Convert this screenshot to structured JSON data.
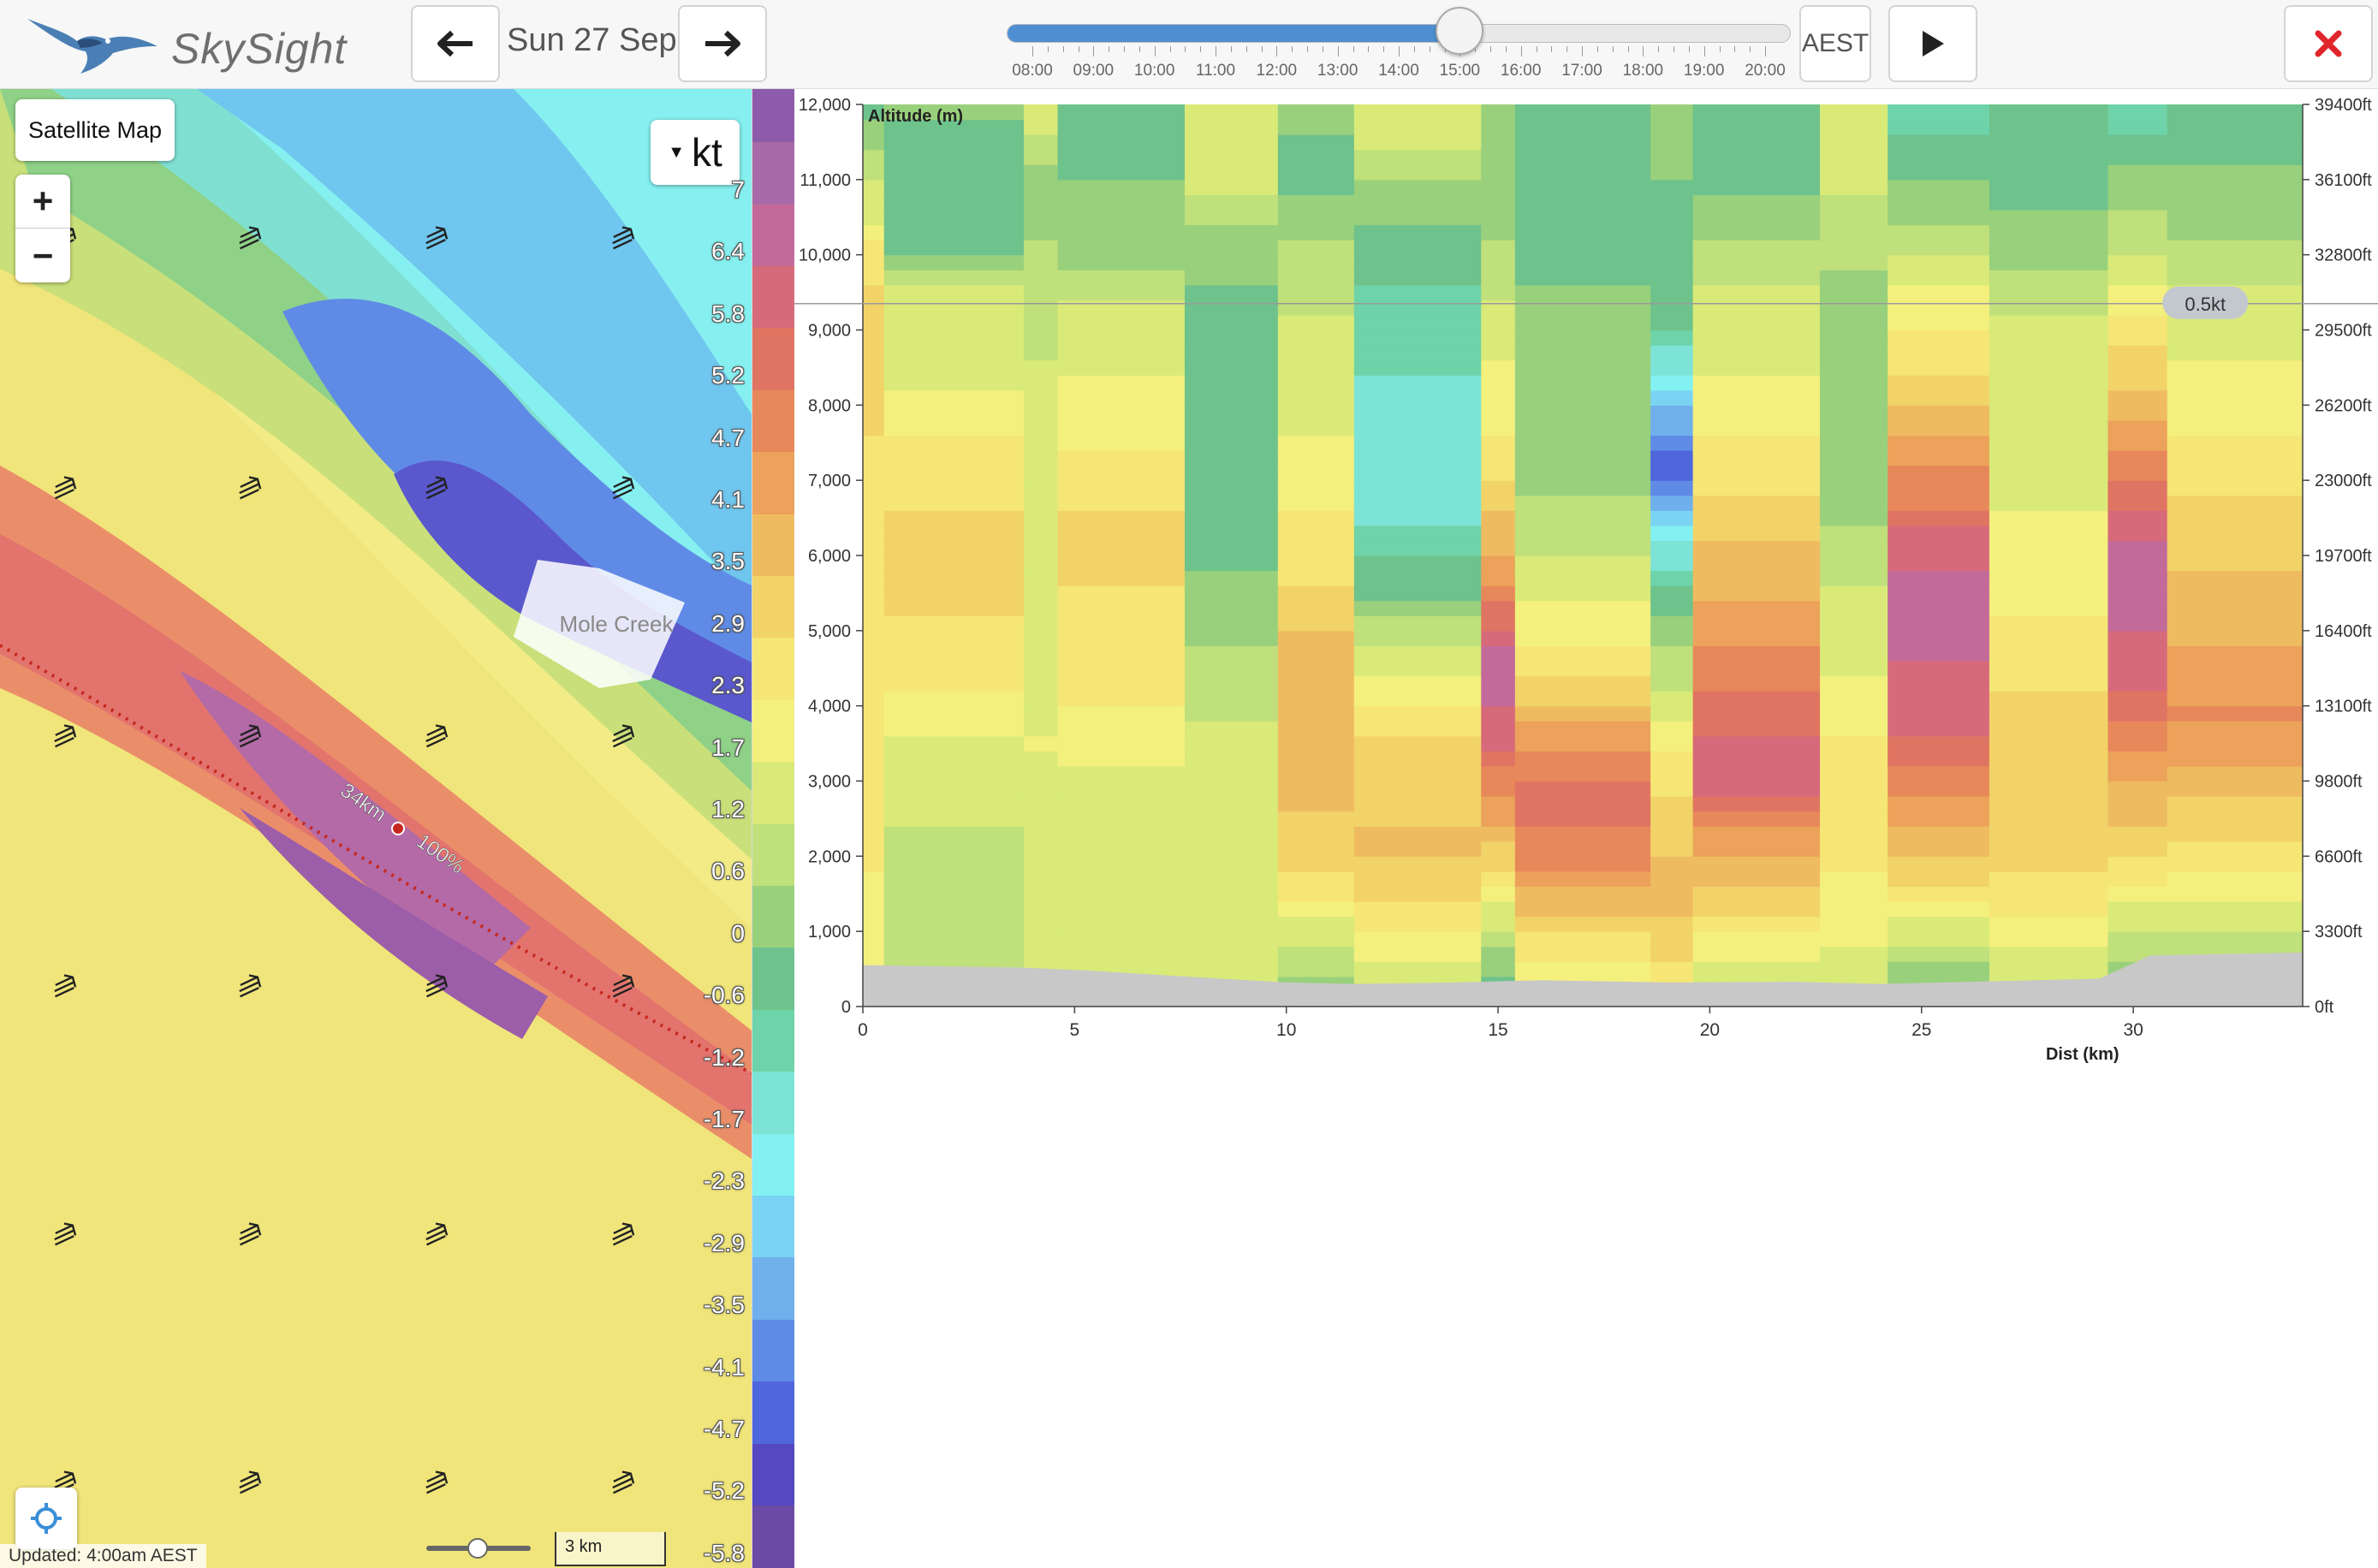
{
  "app": {
    "brand": "SkySight"
  },
  "header": {
    "date_label": "Sun 27 Sep",
    "prev_icon": "arrow-left-icon",
    "next_icon": "arrow-right-icon",
    "timezone_label": "AEST",
    "play_icon": "play-icon",
    "close_icon": "close-icon",
    "close_color": "#e0262b"
  },
  "timeline": {
    "hours": [
      "08:00",
      "09:00",
      "10:00",
      "11:00",
      "12:00",
      "13:00",
      "14:00",
      "15:00",
      "16:00",
      "17:00",
      "18:00",
      "19:00",
      "20:00"
    ],
    "selected": "15:00",
    "fill_color": "#4f8fd1"
  },
  "map": {
    "layer_button": "Satellite Map",
    "zoom_in": "+",
    "zoom_out": "−",
    "unit_label": "kt",
    "place_label": "Mole Creek",
    "route_distance": "34km",
    "route_percent": "100%",
    "updated": "Updated: 4:00am AEST",
    "scale_label": "3 km",
    "locate_icon": "locate-icon"
  },
  "legend": {
    "labels": [
      "7",
      "6.4",
      "5.8",
      "5.2",
      "4.7",
      "4.1",
      "3.5",
      "2.9",
      "2.3",
      "1.7",
      "1.2",
      "0.6",
      "0",
      "-0.6",
      "-1.2",
      "-1.7",
      "-2.3",
      "-2.9",
      "-3.5",
      "-4.1",
      "-4.7",
      "-5.2",
      "-5.8"
    ],
    "colors": [
      "#8e5bab",
      "#a86aa8",
      "#c36a9a",
      "#d76a7a",
      "#e07462",
      "#e7885a",
      "#eca25a",
      "#efbb60",
      "#f1d368",
      "#f5e675",
      "#f4f07e",
      "#d9ea78",
      "#bfe07a",
      "#99d07c",
      "#6ec28c",
      "#6ed3a8",
      "#7ce3d6",
      "#83f0f2",
      "#7ad3f2",
      "#6fb0ec",
      "#5f8be6",
      "#4f66dc",
      "#5648c0",
      "#6a4aa4"
    ]
  },
  "chart_data": {
    "type": "heatmap",
    "title": "",
    "ylabel": "Altitude (m)",
    "xlabel": "Dist (km)",
    "xlim": [
      0,
      34
    ],
    "ylim": [
      0,
      12000
    ],
    "x_ticks": [
      0,
      5,
      10,
      15,
      20,
      25,
      30
    ],
    "y_ticks": [
      0,
      1000,
      2000,
      3000,
      4000,
      5000,
      6000,
      7000,
      8000,
      9000,
      10000,
      11000,
      12000
    ],
    "y_tick_labels": [
      "0",
      "1,000",
      "2,000",
      "3,000",
      "4,000",
      "5,000",
      "6,000",
      "7,000",
      "8,000",
      "9,000",
      "10,000",
      "11,000",
      "12,000"
    ],
    "y2_ticks": [
      "0ft",
      "3300ft",
      "6600ft",
      "9800ft",
      "13100ft",
      "16400ft",
      "19700ft",
      "23000ft",
      "26200ft",
      "29500ft",
      "32800ft",
      "36100ft",
      "39400ft"
    ],
    "cursor_value": "0.5kt",
    "cursor_altitude_m": 9350,
    "value_unit": "kt",
    "columns": [
      {
        "x0": 0.0,
        "x1": 0.5,
        "profile": [
          [
            0,
            1.5
          ],
          [
            9500,
            2.5
          ],
          [
            12000,
            -0.8
          ]
        ]
      },
      {
        "x0": 0.5,
        "x1": 3.8,
        "profile": [
          [
            0,
            0.2
          ],
          [
            600,
            0.6
          ],
          [
            1200,
            0.2
          ],
          [
            3000,
            0.8
          ],
          [
            4400,
            1.8
          ],
          [
            5800,
            2.6
          ],
          [
            7200,
            2.1
          ],
          [
            8500,
            1.0
          ],
          [
            9500,
            0.8
          ],
          [
            10000,
            -0.6
          ],
          [
            11500,
            -0.9
          ],
          [
            12000,
            -0.4
          ]
        ]
      },
      {
        "x0": 3.8,
        "x1": 4.6,
        "profile": [
          [
            0,
            0.9
          ],
          [
            3500,
            1.2
          ],
          [
            7500,
            0.8
          ],
          [
            9800,
            0.4
          ],
          [
            10800,
            -0.6
          ],
          [
            11700,
            0.9
          ]
        ]
      },
      {
        "x0": 4.6,
        "x1": 7.6,
        "profile": [
          [
            0,
            0.9
          ],
          [
            700,
            0.6
          ],
          [
            3200,
            1.2
          ],
          [
            4600,
            2.0
          ],
          [
            6200,
            2.5
          ],
          [
            7800,
            1.5
          ],
          [
            9300,
            0.7
          ],
          [
            10300,
            -0.5
          ],
          [
            11500,
            -0.7
          ]
        ]
      },
      {
        "x0": 7.6,
        "x1": 9.8,
        "profile": [
          [
            0,
            1.0
          ],
          [
            1000,
            1.2
          ],
          [
            3200,
            1.0
          ],
          [
            4200,
            0.4
          ],
          [
            5500,
            -0.4
          ],
          [
            7000,
            -1.2
          ],
          [
            9000,
            -0.9
          ],
          [
            10000,
            -0.4
          ],
          [
            11000,
            0.9
          ]
        ]
      },
      {
        "x0": 9.8,
        "x1": 11.6,
        "profile": [
          [
            0,
            -0.6
          ],
          [
            700,
            0.3
          ],
          [
            1600,
            2.2
          ],
          [
            3000,
            3.1
          ],
          [
            4500,
            3.3
          ],
          [
            5600,
            2.3
          ],
          [
            7500,
            1.2
          ],
          [
            9500,
            0.5
          ],
          [
            10800,
            -0.5
          ],
          [
            11300,
            -1.2
          ],
          [
            11800,
            -0.4
          ]
        ]
      },
      {
        "x0": 11.6,
        "x1": 14.6,
        "profile": [
          [
            0,
            0.5
          ],
          [
            900,
            1.5
          ],
          [
            2000,
            3.0
          ],
          [
            3500,
            2.5
          ],
          [
            4600,
            1.0
          ],
          [
            5500,
            -0.6
          ],
          [
            6500,
            -1.8
          ],
          [
            8000,
            -1.9
          ],
          [
            9400,
            -1.3
          ],
          [
            10500,
            -0.5
          ],
          [
            11500,
            0.6
          ]
        ]
      },
      {
        "x0": 14.6,
        "x1": 15.4,
        "profile": [
          [
            0,
            -1.2
          ],
          [
            1200,
            0.8
          ],
          [
            2300,
            3.2
          ],
          [
            3500,
            5.2
          ],
          [
            4500,
            6.2
          ],
          [
            6000,
            3.5
          ],
          [
            7500,
            1.8
          ],
          [
            9500,
            0.6
          ],
          [
            10800,
            -0.4
          ]
        ]
      },
      {
        "x0": 15.4,
        "x1": 18.6,
        "profile": [
          [
            0,
            0.8
          ],
          [
            800,
            2.0
          ],
          [
            1800,
            4.0
          ],
          [
            2600,
            5.0
          ],
          [
            3400,
            4.2
          ],
          [
            4200,
            2.6
          ],
          [
            5000,
            1.5
          ],
          [
            6000,
            0.5
          ],
          [
            7500,
            -0.5
          ],
          [
            9500,
            -0.6
          ],
          [
            11000,
            -0.7
          ]
        ]
      },
      {
        "x0": 18.6,
        "x1": 19.6,
        "profile": [
          [
            0,
            1.8
          ],
          [
            1500,
            3.2
          ],
          [
            3000,
            2.2
          ],
          [
            5000,
            -0.3
          ],
          [
            6500,
            -3.0
          ],
          [
            7200,
            -5.0
          ],
          [
            9000,
            -1.2
          ],
          [
            11000,
            -0.6
          ]
        ]
      },
      {
        "x0": 19.6,
        "x1": 22.6,
        "profile": [
          [
            0,
            0.6
          ],
          [
            800,
            1.5
          ],
          [
            2000,
            3.5
          ],
          [
            3200,
            5.8
          ],
          [
            4200,
            4.6
          ],
          [
            5300,
            3.5
          ],
          [
            6500,
            2.6
          ],
          [
            8000,
            1.3
          ],
          [
            9500,
            0.8
          ],
          [
            10500,
            -0.5
          ],
          [
            11500,
            -1.0
          ]
        ]
      },
      {
        "x0": 22.6,
        "x1": 24.2,
        "profile": [
          [
            0,
            0.8
          ],
          [
            1200,
            1.4
          ],
          [
            2800,
            2.2
          ],
          [
            4000,
            1.4
          ],
          [
            5500,
            0.6
          ],
          [
            7000,
            -0.5
          ],
          [
            9000,
            -0.6
          ],
          [
            11000,
            0.8
          ]
        ]
      },
      {
        "x0": 24.2,
        "x1": 26.6,
        "profile": [
          [
            0,
            -1.0
          ],
          [
            800,
            0.5
          ],
          [
            1800,
            2.6
          ],
          [
            3000,
            4.5
          ],
          [
            4000,
            5.5
          ],
          [
            5500,
            6.3
          ],
          [
            6600,
            4.8
          ],
          [
            7800,
            3.2
          ],
          [
            8800,
            1.9
          ],
          [
            9800,
            0.9
          ],
          [
            10800,
            -0.5
          ],
          [
            11800,
            -1.3
          ]
        ]
      },
      {
        "x0": 26.6,
        "x1": 29.4,
        "profile": [
          [
            0,
            0.3
          ],
          [
            1000,
            1.4
          ],
          [
            2200,
            2.8
          ],
          [
            3500,
            2.8
          ],
          [
            5000,
            1.8
          ],
          [
            7000,
            1.0
          ],
          [
            9000,
            0.8
          ],
          [
            10200,
            -0.5
          ],
          [
            11500,
            -0.8
          ]
        ]
      },
      {
        "x0": 29.4,
        "x1": 30.8,
        "profile": [
          [
            0,
            -1.2
          ],
          [
            800,
            0.3
          ],
          [
            1800,
            2.0
          ],
          [
            3000,
            3.6
          ],
          [
            4500,
            5.6
          ],
          [
            6000,
            6.2
          ],
          [
            7200,
            4.3
          ],
          [
            8200,
            3.0
          ],
          [
            9200,
            1.6
          ],
          [
            10000,
            0.6
          ],
          [
            11200,
            -0.5
          ],
          [
            11800,
            -1.5
          ]
        ]
      },
      {
        "x0": 30.8,
        "x1": 34.0,
        "profile": [
          [
            0,
            -0.6
          ],
          [
            800,
            0.4
          ],
          [
            1600,
            1.5
          ],
          [
            2800,
            3.0
          ],
          [
            3800,
            4.2
          ],
          [
            5000,
            3.4
          ],
          [
            6300,
            2.6
          ],
          [
            8000,
            1.5
          ],
          [
            9400,
            0.8
          ],
          [
            10500,
            -0.2
          ],
          [
            11500,
            -0.8
          ]
        ]
      }
    ],
    "terrain": [
      [
        0,
        550
      ],
      [
        3.7,
        520
      ],
      [
        5.3,
        480
      ],
      [
        7.6,
        400
      ],
      [
        10,
        320
      ],
      [
        11.6,
        300
      ],
      [
        14,
        320
      ],
      [
        16,
        350
      ],
      [
        19,
        320
      ],
      [
        22,
        330
      ],
      [
        24,
        300
      ],
      [
        25.5,
        320
      ],
      [
        29.2,
        370
      ],
      [
        30.4,
        680
      ],
      [
        34,
        720
      ]
    ]
  }
}
